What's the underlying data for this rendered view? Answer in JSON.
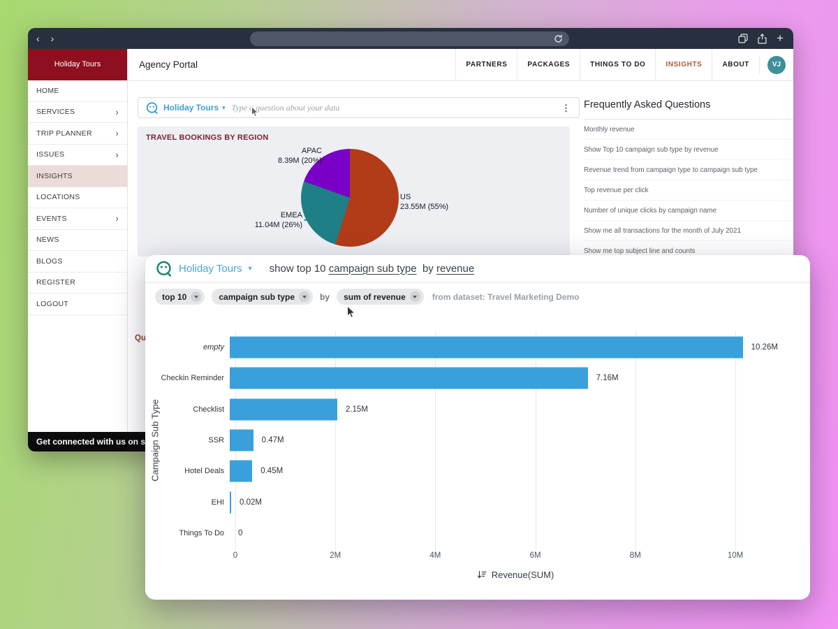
{
  "icons": {
    "back": "‹",
    "forward": "›",
    "plus": "+",
    "kebab": "⋮",
    "chevron_right": "›",
    "chevron_down": "▾"
  },
  "sidebar": {
    "brand": "Holiday Tours",
    "items": [
      {
        "label": "HOME",
        "chevron": false,
        "active": false
      },
      {
        "label": "SERVICES",
        "chevron": true,
        "active": false
      },
      {
        "label": "TRIP PLANNER",
        "chevron": true,
        "active": false
      },
      {
        "label": "ISSUES",
        "chevron": true,
        "active": false
      },
      {
        "label": "INSIGHTS",
        "chevron": false,
        "active": true
      },
      {
        "label": "LOCATIONS",
        "chevron": false,
        "active": false
      },
      {
        "label": "EVENTS",
        "chevron": true,
        "active": false
      },
      {
        "label": "NEWS",
        "chevron": false,
        "active": false
      },
      {
        "label": "BLOGS",
        "chevron": false,
        "active": false
      },
      {
        "label": "REGISTER",
        "chevron": false,
        "active": false
      },
      {
        "label": "LOGOUT",
        "chevron": false,
        "active": false
      }
    ]
  },
  "header": {
    "title": "Agency Portal",
    "nav": [
      {
        "label": "PARTNERS",
        "active": false
      },
      {
        "label": "PACKAGES",
        "active": false
      },
      {
        "label": "THINGS TO DO",
        "active": false
      },
      {
        "label": "INSIGHTS",
        "active": true
      },
      {
        "label": "ABOUT",
        "active": false
      }
    ],
    "avatar": "VJ",
    "active_color": "#ad5a35"
  },
  "qbar": {
    "topic": "Holiday Tours",
    "placeholder": "Type a question about your data"
  },
  "main": {
    "partial_text": "Qui"
  },
  "faq": {
    "title": "Frequently Asked Questions",
    "items": [
      "Monthly revenue",
      "Show Top 10 campaign sub type by revenue",
      "Revenue trend from campaign type to campaign sub type",
      "Top revenue per click",
      "Number of unique clicks by campaign name",
      "Show me all transactions for the month of July 2021",
      "Show me top subject line and counts"
    ]
  },
  "footer": {
    "text": "Get connected with us on socia"
  },
  "dialog": {
    "topic": "Holiday Tours",
    "query_parts": [
      {
        "text": "show top 10 ",
        "underline": false
      },
      {
        "text": "campaign sub type",
        "underline": true
      },
      {
        "text": "  by ",
        "underline": false
      },
      {
        "text": "revenue",
        "underline": true
      }
    ],
    "chips": [
      {
        "label": "top 10"
      },
      {
        "label": "campaign sub type"
      },
      {
        "label": "sum of revenue"
      }
    ],
    "by_text": "by",
    "dataset_text": "from dataset: Travel Marketing Demo"
  },
  "chart_data": [
    {
      "type": "pie",
      "title": "TRAVEL BOOKINGS BY REGION",
      "slices": [
        {
          "label": "US",
          "value": 23.55,
          "pct": 55,
          "value_label": "23.55M (55%)",
          "color": "#b23c17"
        },
        {
          "label": "EMEA",
          "value": 11.04,
          "pct": 26,
          "value_label": "11.04M (26%)",
          "color": "#1e7f86"
        },
        {
          "label": "APAC",
          "value": 8.39,
          "pct": 20,
          "value_label": "8.39M (20%)",
          "color": "#7a00c8"
        }
      ],
      "legend": "none",
      "start_angle": "12-oclock, clockwise"
    },
    {
      "type": "bar",
      "orientation": "horizontal",
      "categories": [
        "empty",
        "Checkin Reminder",
        "Checklist",
        "SSR",
        "Hotel Deals",
        "EHI",
        "Things To Do"
      ],
      "values": [
        10.26,
        7.16,
        2.15,
        0.47,
        0.45,
        0.02,
        0
      ],
      "value_labels": [
        "10.26M",
        "7.16M",
        "2.15M",
        "0.47M",
        "0.45M",
        "0.02M",
        "0"
      ],
      "italic_category": "empty",
      "unit": "millions",
      "xlabel": "Revenue(SUM)",
      "ylabel": "Campaign Sub Type",
      "x_ticks": [
        "0",
        "2M",
        "4M",
        "6M",
        "8M",
        "10M"
      ],
      "xlim": [
        0,
        10.33
      ],
      "bar_color": "#3aa0dc",
      "grid": true,
      "sort": "descending"
    }
  ]
}
